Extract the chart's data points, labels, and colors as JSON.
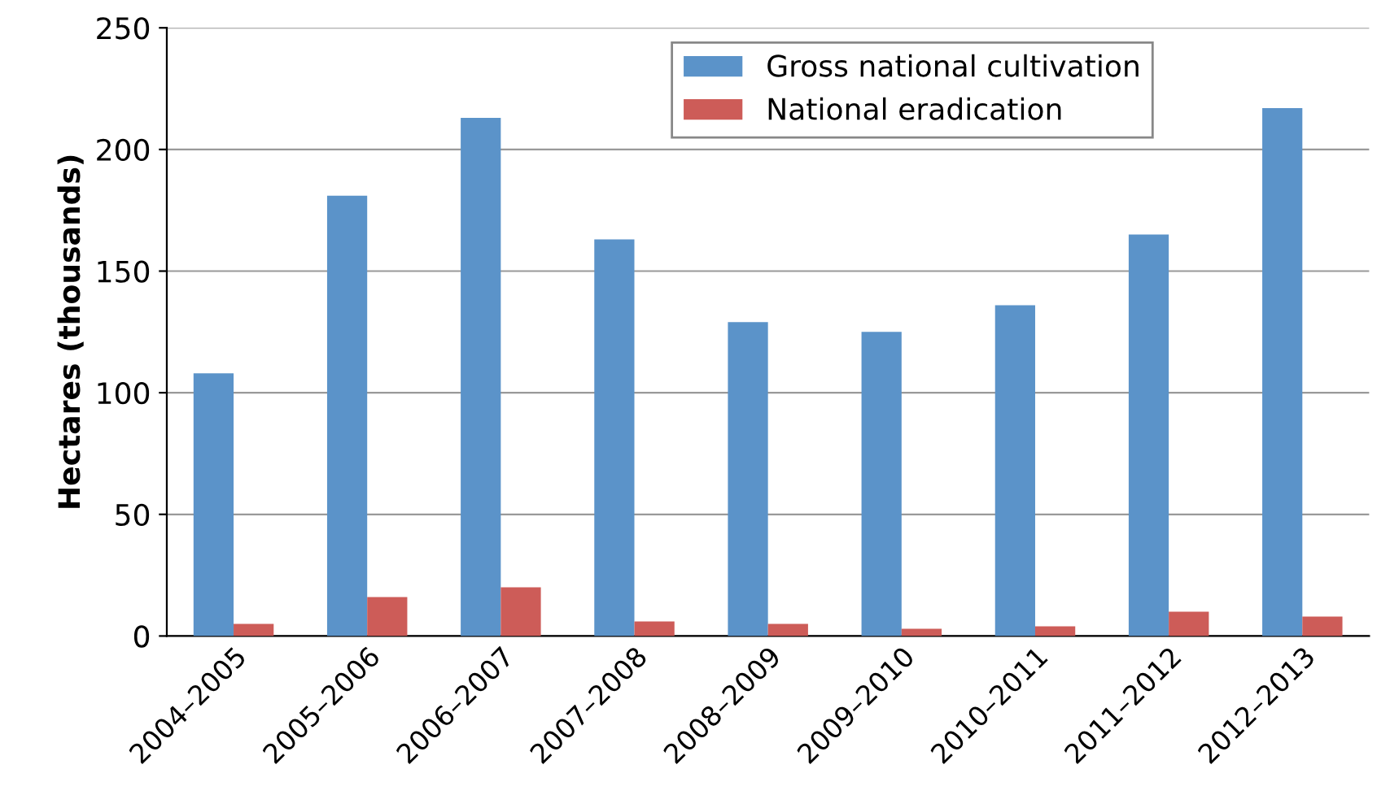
{
  "chart_data": {
    "type": "bar",
    "ylabel": "Hectares (thousands)",
    "categories": [
      "2004–2005",
      "2005–2006",
      "2006–2007",
      "2007–2008",
      "2008–2009",
      "2009–2010",
      "2010–2011",
      "2011–2012",
      "2012–2013"
    ],
    "series": [
      {
        "name": "Gross national cultivation",
        "color": "#5b93c9",
        "values": [
          108,
          181,
          213,
          163,
          129,
          125,
          136,
          165,
          217
        ]
      },
      {
        "name": "National eradication",
        "color": "#cd5c58",
        "values": [
          5,
          16,
          20,
          6,
          5,
          3,
          4,
          10,
          8
        ]
      }
    ],
    "ylim": [
      0,
      250
    ],
    "yticks": [
      0,
      50,
      100,
      150,
      200,
      250
    ],
    "grid": "y",
    "legend": "top"
  }
}
